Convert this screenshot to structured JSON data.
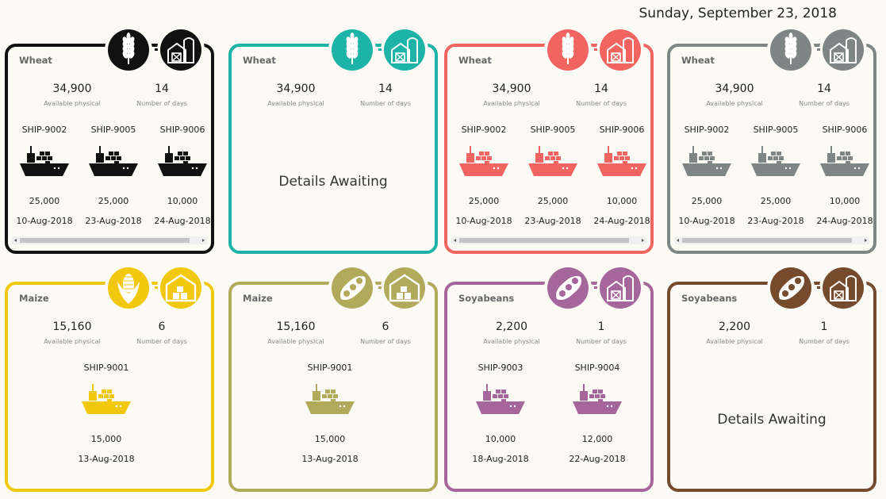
{
  "date": "Sunday, September 23, 2018",
  "cards": [
    {
      "title": "Wheat",
      "color": "#111111",
      "available": "34,900",
      "available_label": "Available physical",
      "days": "14",
      "days_label": "Number of days",
      "ships": [
        {
          "id": "SHIP-9002",
          "quantity": "25,000",
          "date": "10-Aug-2018"
        },
        {
          "id": "SHIP-9005",
          "quantity": "25,000",
          "date": "23-Aug-2018"
        },
        {
          "id": "SHIP-9006",
          "quantity": "10,000",
          "date": "24-Aug-2018"
        }
      ]
    },
    {
      "title": "Wheat",
      "color": "#1db3a7",
      "available": "34,900",
      "available_label": "Available physical",
      "days": "14",
      "days_label": "Number of days",
      "details": "Details Awaiting"
    },
    {
      "title": "Wheat",
      "color": "#f2645f",
      "available": "34,900",
      "available_label": "Available physical",
      "days": "14",
      "days_label": "Number of days",
      "ships": [
        {
          "id": "SHIP-9002",
          "quantity": "25,000",
          "date": "10-Aug-2018"
        },
        {
          "id": "SHIP-9005",
          "quantity": "25,000",
          "date": "23-Aug-2018"
        },
        {
          "id": "SHIP-9006",
          "quantity": "10,000",
          "date": "24-Aug-2018"
        }
      ]
    },
    {
      "title": "Wheat",
      "color": "#7d8585",
      "available": "34,900",
      "available_label": "Available physical",
      "days": "14",
      "days_label": "Number of days",
      "ships": [
        {
          "id": "SHIP-9002",
          "quantity": "25,000",
          "date": "10-Aug-2018"
        },
        {
          "id": "SHIP-9005",
          "quantity": "25,000",
          "date": "23-Aug-2018"
        },
        {
          "id": "SHIP-9006",
          "quantity": "10,000",
          "date": "24-Aug-2018"
        }
      ]
    },
    {
      "title": "Maize",
      "color": "#f2c80f",
      "available": "15,160",
      "available_label": "Available physical",
      "days": "6",
      "days_label": "Number of days",
      "ships": [
        {
          "id": "SHIP-9001",
          "quantity": "15,000",
          "date": "13-Aug-2018"
        }
      ]
    },
    {
      "title": "Maize",
      "color": "#b1aa5b",
      "available": "15,160",
      "available_label": "Available physical",
      "days": "6",
      "days_label": "Number of days",
      "ships": [
        {
          "id": "SHIP-9001",
          "quantity": "15,000",
          "date": "13-Aug-2018"
        }
      ]
    },
    {
      "title": "Soyabeans",
      "color": "#a5669c",
      "available": "2,200",
      "available_label": "Available physical",
      "days": "1",
      "days_label": "Number of days",
      "ships": [
        {
          "id": "SHIP-9003",
          "quantity": "10,000",
          "date": "18-Aug-2018"
        },
        {
          "id": "SHIP-9004",
          "quantity": "12,000",
          "date": "22-Aug-2018"
        }
      ]
    },
    {
      "title": "Soyabeans",
      "color": "#764a2d",
      "available": "2,200",
      "available_label": "Available physical",
      "days": "1",
      "days_label": "Number of days",
      "details": "Details Awaiting"
    }
  ]
}
